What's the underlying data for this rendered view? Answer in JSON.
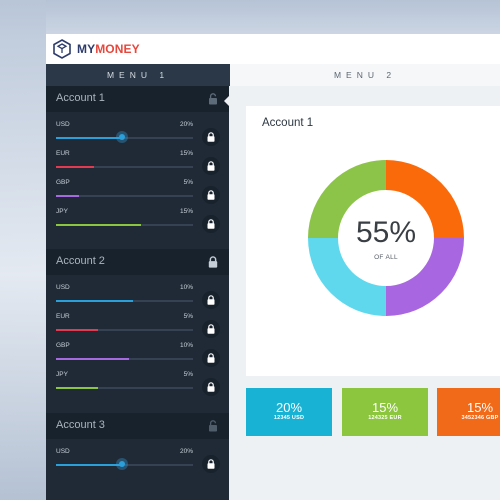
{
  "brand": {
    "part1": "MY",
    "part2": "MONEY"
  },
  "tabs": [
    "MENU 1",
    "MENU 2"
  ],
  "accounts": [
    {
      "title": "Account 1",
      "rows": [
        {
          "currency": "USD",
          "percent": "20%",
          "value": 0.48,
          "color": "#2b9fd9",
          "knob": true
        },
        {
          "currency": "EUR",
          "percent": "15%",
          "value": 0.28,
          "color": "#e23a4e"
        },
        {
          "currency": "GBP",
          "percent": "5%",
          "value": 0.17,
          "color": "#a66ae0"
        },
        {
          "currency": "JPY",
          "percent": "15%",
          "value": 0.62,
          "color": "#8cc63f"
        }
      ]
    },
    {
      "title": "Account 2",
      "rows": [
        {
          "currency": "USD",
          "percent": "10%",
          "value": 0.56,
          "color": "#2b9fd9"
        },
        {
          "currency": "EUR",
          "percent": "5%",
          "value": 0.31,
          "color": "#e23a4e"
        },
        {
          "currency": "GBP",
          "percent": "10%",
          "value": 0.53,
          "color": "#a66ae0"
        },
        {
          "currency": "JPY",
          "percent": "5%",
          "value": 0.31,
          "color": "#8cc63f"
        }
      ]
    },
    {
      "title": "Account 3",
      "rows": [
        {
          "currency": "USD",
          "percent": "20%",
          "value": 0.48,
          "color": "#2b9fd9",
          "knob": true
        }
      ]
    }
  ],
  "main": {
    "title": "Account 1",
    "center_value": "55%",
    "center_label": "OF ALL",
    "stats": [
      {
        "percent": "20%",
        "amount": "12345 USD",
        "color": "#18b3d4"
      },
      {
        "percent": "15%",
        "amount": "124325 EUR",
        "color": "#8cc63f"
      },
      {
        "percent": "15%",
        "amount": "3452346 GBP",
        "color": "#f06a1a"
      }
    ]
  },
  "chart_data": {
    "type": "pie",
    "title": "",
    "segments": [
      {
        "value": 25,
        "color": "#fb6a0a"
      },
      {
        "value": 25,
        "color": "#a866e0"
      },
      {
        "value": 25,
        "color": "#5fd8ee"
      },
      {
        "value": 25,
        "color": "#8cc44a"
      }
    ]
  }
}
